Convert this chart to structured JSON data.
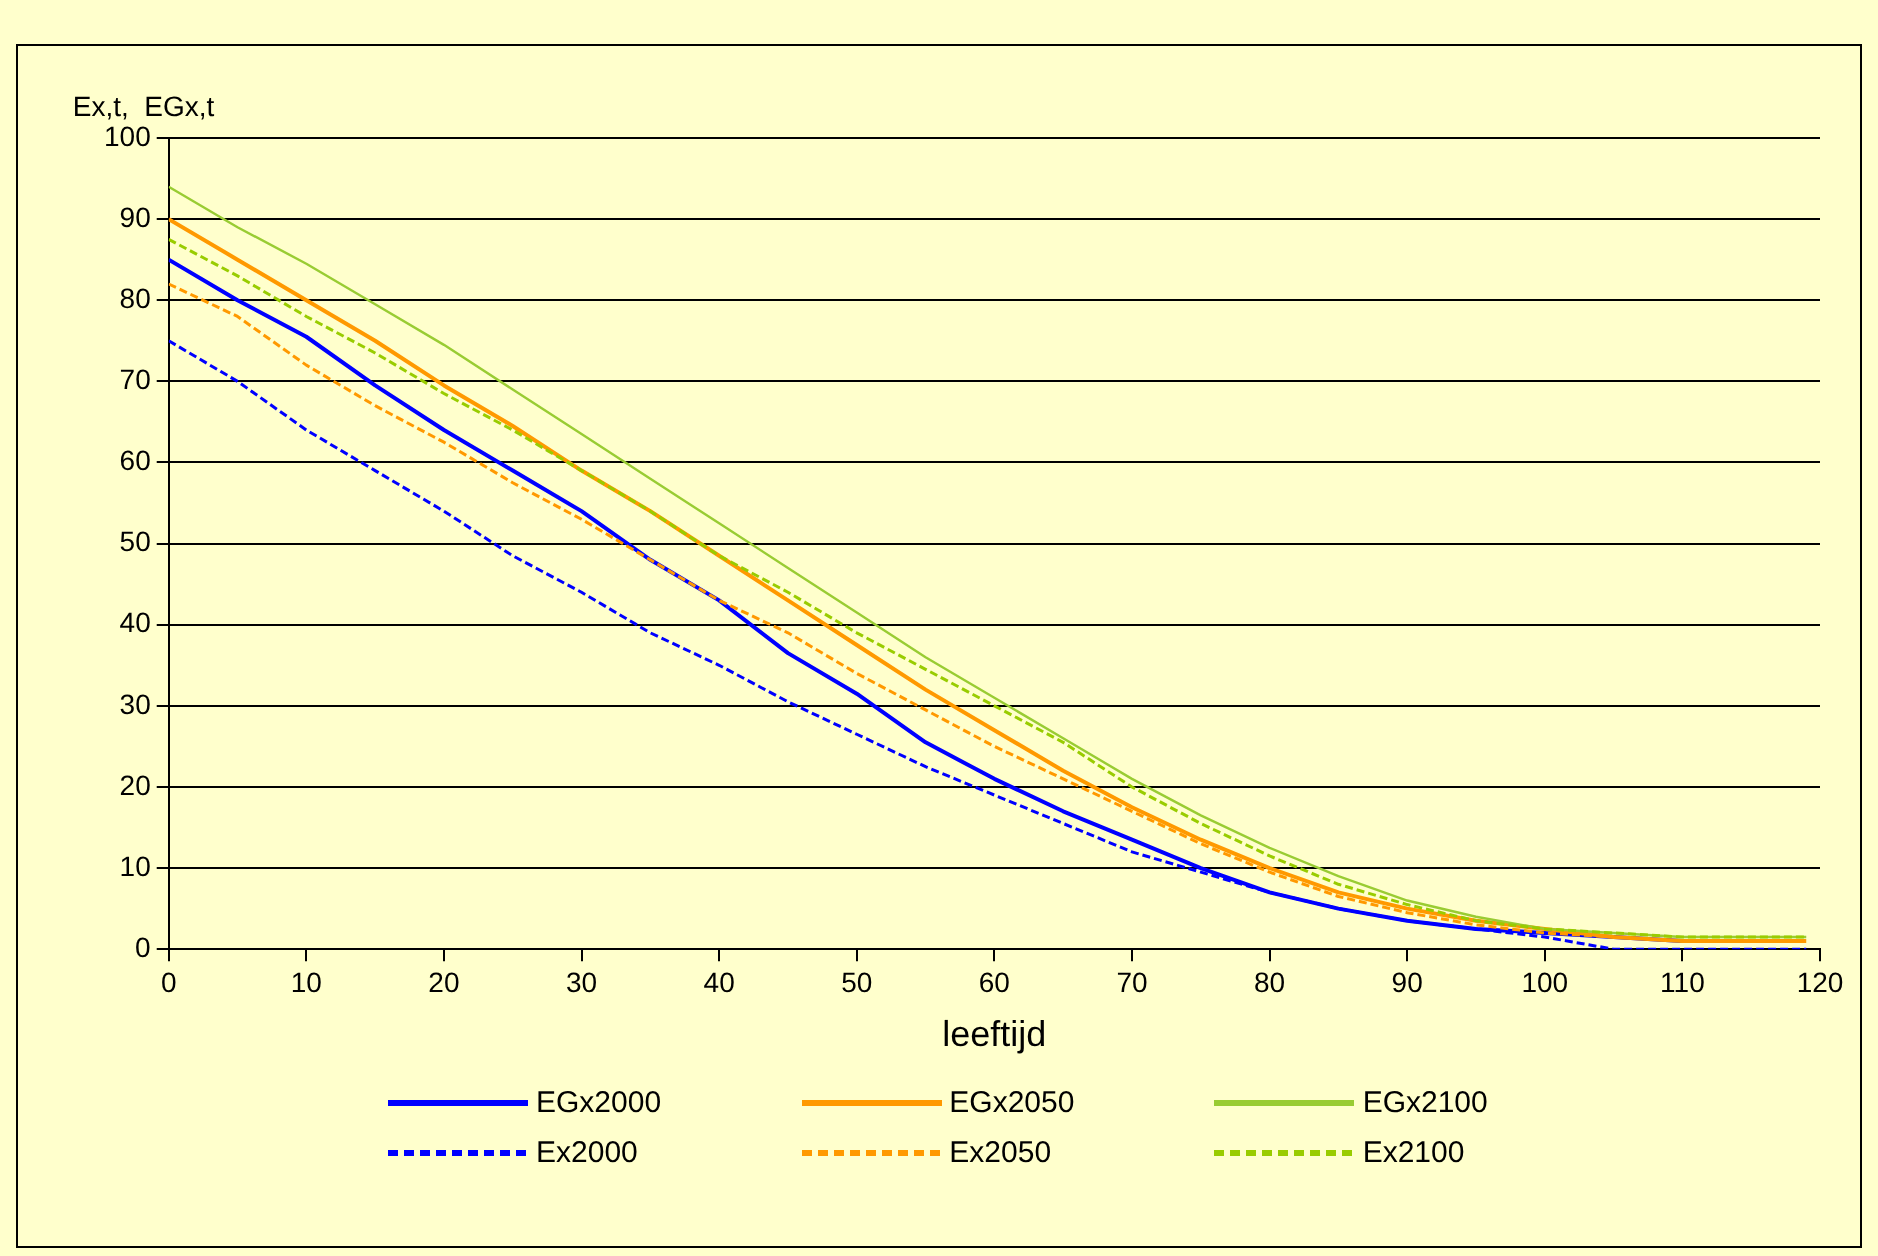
{
  "chart_data": {
    "type": "line",
    "ylabel": "Ex,t,  EGx,t",
    "xlabel": "leeftijd",
    "x": [
      0,
      5,
      10,
      15,
      20,
      25,
      30,
      35,
      40,
      45,
      50,
      55,
      60,
      65,
      70,
      75,
      80,
      85,
      90,
      95,
      100,
      105,
      110,
      115,
      119
    ],
    "xlim": [
      0,
      120
    ],
    "xticks": [
      0,
      10,
      20,
      30,
      40,
      50,
      60,
      70,
      80,
      90,
      100,
      110,
      120
    ],
    "ylim": [
      0,
      100
    ],
    "yticks": [
      0,
      10,
      20,
      30,
      40,
      50,
      60,
      70,
      80,
      90,
      100
    ],
    "grid": "y",
    "legend": "bottom",
    "marker": "none",
    "series": [
      {
        "name": "EGx2000",
        "color": "#0000ff",
        "line_style": "solid",
        "values": [
          85,
          80,
          75.5,
          69.5,
          64,
          59,
          54,
          48,
          43,
          36.5,
          31.5,
          25.5,
          21,
          17,
          13.5,
          10,
          7,
          5,
          3.5,
          2.5,
          2,
          1.5,
          1,
          null,
          null
        ]
      },
      {
        "name": "EGx2050",
        "color": "#ff9900",
        "line_style": "solid",
        "values": [
          90,
          85,
          80,
          75,
          69.5,
          64.5,
          59,
          54,
          48.5,
          43,
          37.5,
          32,
          27,
          22,
          17.5,
          13.5,
          10,
          7,
          5,
          3.5,
          2.5,
          1.5,
          1,
          1,
          1
        ]
      },
      {
        "name": "EGx2100",
        "color": "#99cc33",
        "line_style": "solid",
        "values": [
          94,
          89,
          84.5,
          79.5,
          74.5,
          69,
          63.5,
          58,
          52.5,
          47,
          41.5,
          36,
          31,
          26,
          21,
          16.5,
          12.5,
          9,
          6,
          4,
          2.5,
          2,
          1.5,
          1.5,
          1.5
        ]
      },
      {
        "name": "Ex2000",
        "color": "#0000ff",
        "line_style": "dashed",
        "values": [
          75,
          70,
          64,
          59,
          54,
          48.5,
          44,
          39,
          35,
          30.5,
          26.5,
          22.5,
          19,
          15.5,
          12,
          9.5,
          7,
          5,
          3.5,
          2.5,
          1.5,
          0,
          0,
          0,
          0
        ]
      },
      {
        "name": "Ex2050",
        "color": "#ff9900",
        "line_style": "dashed",
        "values": [
          82,
          78,
          72,
          67,
          62.5,
          57.5,
          53,
          48,
          43,
          39,
          34,
          29.5,
          25,
          21,
          17,
          13,
          9.5,
          6.5,
          4.5,
          3,
          2,
          1.5,
          1,
          null,
          null
        ]
      },
      {
        "name": "Ex2100",
        "color": "#99cc00",
        "line_style": "dashed",
        "values": [
          87.5,
          83,
          78,
          73.5,
          68.5,
          64,
          59,
          54,
          48.5,
          44,
          39,
          34.5,
          30,
          25.5,
          20,
          15.5,
          11.5,
          8,
          5.5,
          3.5,
          2.5,
          2,
          1.5,
          1.5,
          1.5
        ]
      }
    ]
  }
}
